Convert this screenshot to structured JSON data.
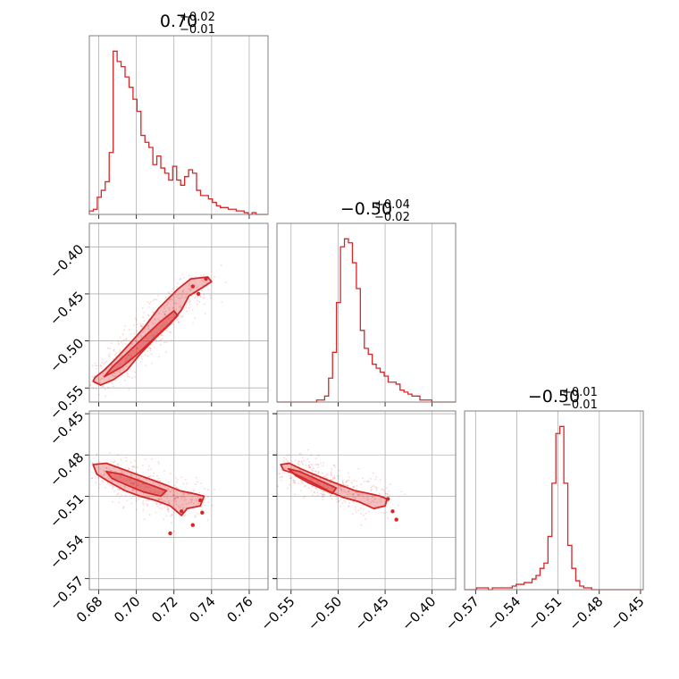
{
  "colors": {
    "series": "#d62728",
    "frame": "#808080",
    "grid": "#b0b0b0"
  },
  "chart_data": {
    "type": "corner",
    "grid": true,
    "titles": [
      {
        "value": "0.70",
        "plus": "+0.02",
        "minus": "−0.01"
      },
      {
        "value": "−0.50",
        "plus": "+0.04",
        "minus": "−0.02"
      },
      {
        "value": "−0.50",
        "plus": "+0.01",
        "minus": "−0.01"
      }
    ],
    "params": [
      {
        "range": [
          0.675,
          0.77
        ],
        "ticks": [
          0.68,
          0.7,
          0.72,
          0.74,
          0.76
        ],
        "tick_labels": [
          "0.68",
          "0.70",
          "0.72",
          "0.74",
          "0.76"
        ]
      },
      {
        "range": [
          -0.565,
          -0.375
        ],
        "ticks": [
          -0.55,
          -0.5,
          -0.45,
          -0.4
        ],
        "tick_labels": [
          "−0.55",
          "−0.50",
          "−0.45",
          "−0.40"
        ]
      },
      {
        "range": [
          -0.578,
          -0.448
        ],
        "ticks": [
          -0.57,
          -0.54,
          -0.51,
          -0.48,
          -0.45
        ],
        "tick_labels": [
          "−0.57",
          "−0.54",
          "−0.51",
          "−0.48",
          "−0.45"
        ]
      }
    ],
    "histograms": [
      {
        "param": 0,
        "bin_start": 0.675,
        "bin_end": 0.77,
        "counts": [
          2,
          3,
          10,
          14,
          19,
          36,
          95,
          89,
          86,
          80,
          74,
          67,
          60,
          46,
          42,
          39,
          29,
          34,
          27,
          24,
          20,
          28,
          20,
          17,
          22,
          26,
          24,
          14,
          11,
          11,
          9,
          7,
          5,
          4,
          4,
          3,
          3,
          2,
          2,
          1,
          0,
          1,
          0,
          0,
          0
        ]
      },
      {
        "param": 1,
        "bin_start": -0.565,
        "bin_end": -0.375,
        "counts": [
          0,
          0,
          0,
          0,
          0,
          0,
          0,
          0,
          0,
          0,
          1,
          1,
          3,
          12,
          25,
          50,
          78,
          82,
          80,
          70,
          57,
          36,
          27,
          24,
          19,
          17,
          15,
          13,
          10,
          10,
          9,
          6,
          5,
          4,
          3,
          3,
          1,
          1,
          1,
          0,
          0,
          0,
          0,
          0,
          0
        ]
      },
      {
        "param": 2,
        "bin_start": -0.578,
        "bin_end": -0.448,
        "counts": [
          0,
          0,
          0,
          1,
          1,
          1,
          0,
          1,
          1,
          1,
          1,
          1,
          2,
          3,
          3,
          4,
          4,
          6,
          8,
          12,
          15,
          30,
          60,
          88,
          92,
          60,
          25,
          12,
          5,
          2,
          1,
          1,
          0,
          0,
          0,
          0,
          0,
          0,
          0,
          0,
          0,
          0,
          0,
          0,
          0
        ]
      }
    ],
    "pairs": [
      {
        "x_param": 0,
        "y_param": 1,
        "outer": [
          [
            0.677,
            -0.543
          ],
          [
            0.681,
            -0.547
          ],
          [
            0.688,
            -0.541
          ],
          [
            0.695,
            -0.531
          ],
          [
            0.702,
            -0.514
          ],
          [
            0.71,
            -0.497
          ],
          [
            0.718,
            -0.482
          ],
          [
            0.724,
            -0.467
          ],
          [
            0.728,
            -0.452
          ],
          [
            0.733,
            -0.446
          ],
          [
            0.74,
            -0.437
          ],
          [
            0.738,
            -0.432
          ],
          [
            0.729,
            -0.434
          ],
          [
            0.722,
            -0.445
          ],
          [
            0.712,
            -0.465
          ],
          [
            0.704,
            -0.486
          ],
          [
            0.696,
            -0.504
          ],
          [
            0.689,
            -0.519
          ],
          [
            0.683,
            -0.531
          ],
          [
            0.678,
            -0.539
          ]
        ],
        "inner": [
          [
            0.683,
            -0.538
          ],
          [
            0.692,
            -0.528
          ],
          [
            0.7,
            -0.515
          ],
          [
            0.708,
            -0.5
          ],
          [
            0.716,
            -0.485
          ],
          [
            0.722,
            -0.473
          ],
          [
            0.72,
            -0.468
          ],
          [
            0.712,
            -0.481
          ],
          [
            0.703,
            -0.498
          ],
          [
            0.694,
            -0.515
          ],
          [
            0.687,
            -0.528
          ]
        ],
        "blobs": [
          [
            0.73,
            -0.442
          ],
          [
            0.737,
            -0.434
          ],
          [
            0.733,
            -0.45
          ]
        ]
      },
      {
        "x_param": 0,
        "y_param": 2,
        "outer": [
          [
            0.677,
            -0.487
          ],
          [
            0.684,
            -0.486
          ],
          [
            0.692,
            -0.49
          ],
          [
            0.7,
            -0.494
          ],
          [
            0.708,
            -0.498
          ],
          [
            0.716,
            -0.502
          ],
          [
            0.723,
            -0.506
          ],
          [
            0.73,
            -0.508
          ],
          [
            0.736,
            -0.51
          ],
          [
            0.734,
            -0.517
          ],
          [
            0.727,
            -0.519
          ],
          [
            0.724,
            -0.524
          ],
          [
            0.718,
            -0.517
          ],
          [
            0.71,
            -0.513
          ],
          [
            0.702,
            -0.51
          ],
          [
            0.694,
            -0.506
          ],
          [
            0.686,
            -0.5
          ],
          [
            0.679,
            -0.494
          ]
        ],
        "inner": [
          [
            0.684,
            -0.492
          ],
          [
            0.692,
            -0.494
          ],
          [
            0.7,
            -0.498
          ],
          [
            0.708,
            -0.502
          ],
          [
            0.716,
            -0.506
          ],
          [
            0.713,
            -0.51
          ],
          [
            0.704,
            -0.507
          ],
          [
            0.695,
            -0.502
          ],
          [
            0.687,
            -0.497
          ]
        ],
        "blobs": [
          [
            0.734,
            -0.513
          ],
          [
            0.735,
            -0.522
          ],
          [
            0.718,
            -0.537
          ],
          [
            0.724,
            -0.521
          ],
          [
            0.73,
            -0.531
          ]
        ]
      },
      {
        "x_param": 1,
        "y_param": 2,
        "outer": [
          [
            -0.561,
            -0.487
          ],
          [
            -0.552,
            -0.486
          ],
          [
            -0.54,
            -0.49
          ],
          [
            -0.526,
            -0.494
          ],
          [
            -0.512,
            -0.498
          ],
          [
            -0.497,
            -0.502
          ],
          [
            -0.482,
            -0.506
          ],
          [
            -0.468,
            -0.508
          ],
          [
            -0.455,
            -0.51
          ],
          [
            -0.448,
            -0.512
          ],
          [
            -0.45,
            -0.517
          ],
          [
            -0.462,
            -0.519
          ],
          [
            -0.478,
            -0.514
          ],
          [
            -0.494,
            -0.511
          ],
          [
            -0.508,
            -0.507
          ],
          [
            -0.522,
            -0.502
          ],
          [
            -0.536,
            -0.497
          ],
          [
            -0.549,
            -0.493
          ],
          [
            -0.558,
            -0.491
          ]
        ],
        "inner": [
          [
            -0.553,
            -0.49
          ],
          [
            -0.541,
            -0.492
          ],
          [
            -0.528,
            -0.496
          ],
          [
            -0.515,
            -0.5
          ],
          [
            -0.502,
            -0.504
          ],
          [
            -0.506,
            -0.508
          ],
          [
            -0.519,
            -0.504
          ],
          [
            -0.532,
            -0.5
          ],
          [
            -0.545,
            -0.495
          ]
        ],
        "blobs": [
          [
            -0.447,
            -0.512
          ],
          [
            -0.438,
            -0.527
          ],
          [
            -0.442,
            -0.521
          ]
        ]
      }
    ]
  }
}
